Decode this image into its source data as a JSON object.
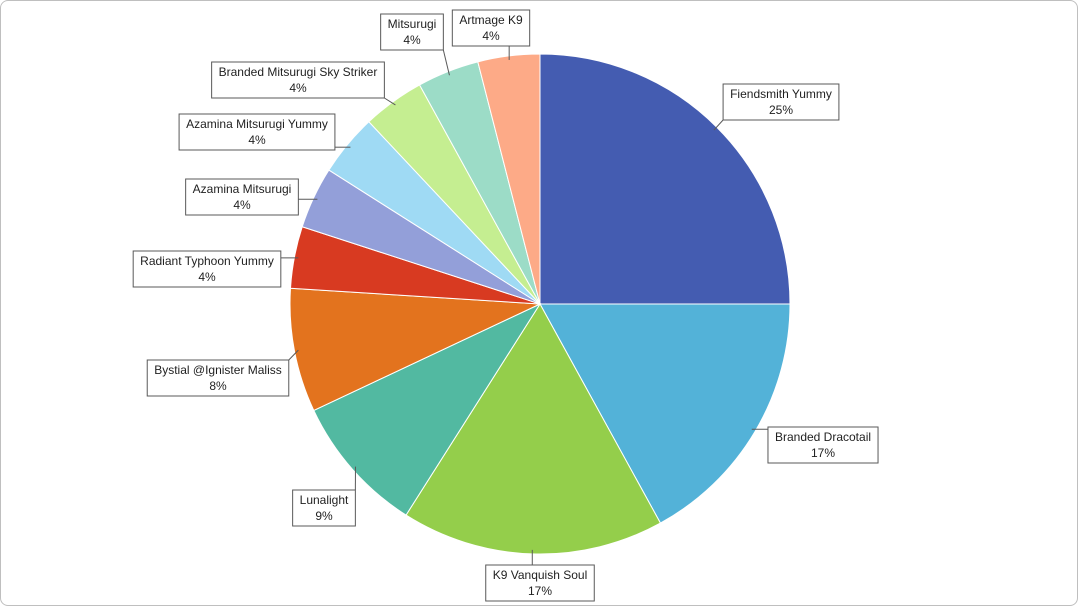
{
  "chart_data": {
    "type": "pie",
    "title": "",
    "slices": [
      {
        "label": "Fiendsmith Yummy",
        "value": 25,
        "pct_label": "25%",
        "color": "#445CB1"
      },
      {
        "label": "Branded Dracotail",
        "value": 17,
        "pct_label": "17%",
        "color": "#53B2D8"
      },
      {
        "label": "K9 Vanquish Soul",
        "value": 17,
        "pct_label": "17%",
        "color": "#94CE4B"
      },
      {
        "label": "Lunalight",
        "value": 9,
        "pct_label": "9%",
        "color": "#52B9A1"
      },
      {
        "label": "Bystial @Ignister Maliss",
        "value": 8,
        "pct_label": "8%",
        "color": "#E3731E"
      },
      {
        "label": "Radiant Typhoon Yummy",
        "value": 4,
        "pct_label": "4%",
        "color": "#D83A21"
      },
      {
        "label": "Azamina Mitsurugi",
        "value": 4,
        "pct_label": "4%",
        "color": "#939FD9"
      },
      {
        "label": "Azamina Mitsurugi Yummy",
        "value": 4,
        "pct_label": "4%",
        "color": "#9FDAF4"
      },
      {
        "label": "Branded Mitsurugi Sky Striker",
        "value": 4,
        "pct_label": "4%",
        "color": "#C5EE91"
      },
      {
        "label": "Mitsurugi",
        "value": 4,
        "pct_label": "4%",
        "color": "#9CDCC7"
      },
      {
        "label": "Artmage K9",
        "value": 4,
        "pct_label": "4%",
        "color": "#FDAA87"
      }
    ]
  }
}
